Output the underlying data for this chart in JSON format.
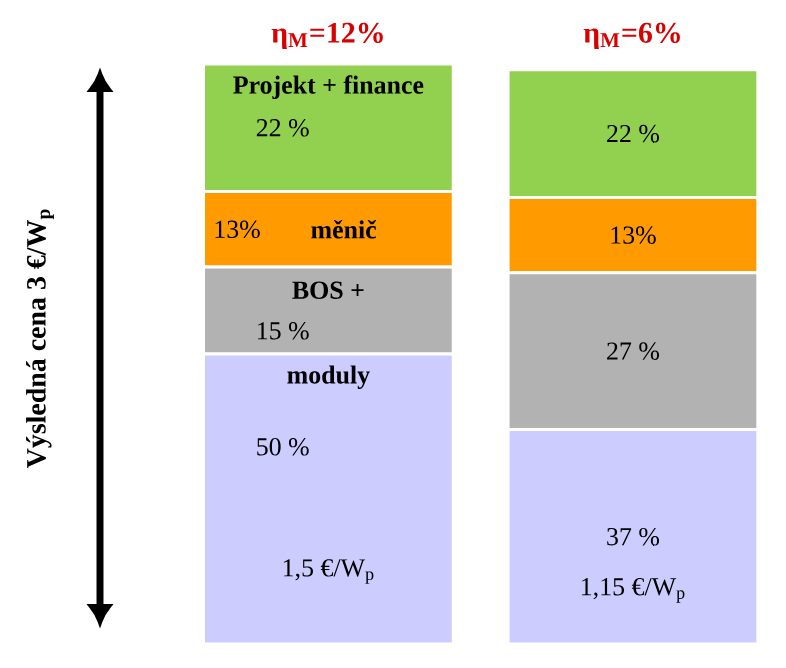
{
  "chart_data": {
    "type": "bar",
    "stacked": true,
    "ylabel": "Výsledná cena 3 €/W$_{p}$",
    "categories": [
      "η$_{M}$=12%",
      "η$_{M}$=6%"
    ],
    "series": [
      {
        "name": "moduly",
        "color": "#ccccff",
        "values": [
          50,
          37
        ],
        "value_labels": [
          "50 %",
          "37 %"
        ]
      },
      {
        "name": "BOS +",
        "color": "#b2b2b2",
        "values": [
          15,
          27
        ],
        "value_labels": [
          "15 %",
          "27 %"
        ]
      },
      {
        "name": "měnič",
        "color": "#ff9a00",
        "values": [
          13,
          13
        ],
        "value_labels": [
          "13%",
          "13%"
        ]
      },
      {
        "name": "Projekt + finance",
        "color": "#92d050",
        "values": [
          22,
          22
        ],
        "value_labels": [
          "22 %",
          "22 %"
        ]
      }
    ],
    "annotations": [
      "1,5 €/W$_{p}$",
      "1,15 €/W$_{p}$"
    ]
  }
}
